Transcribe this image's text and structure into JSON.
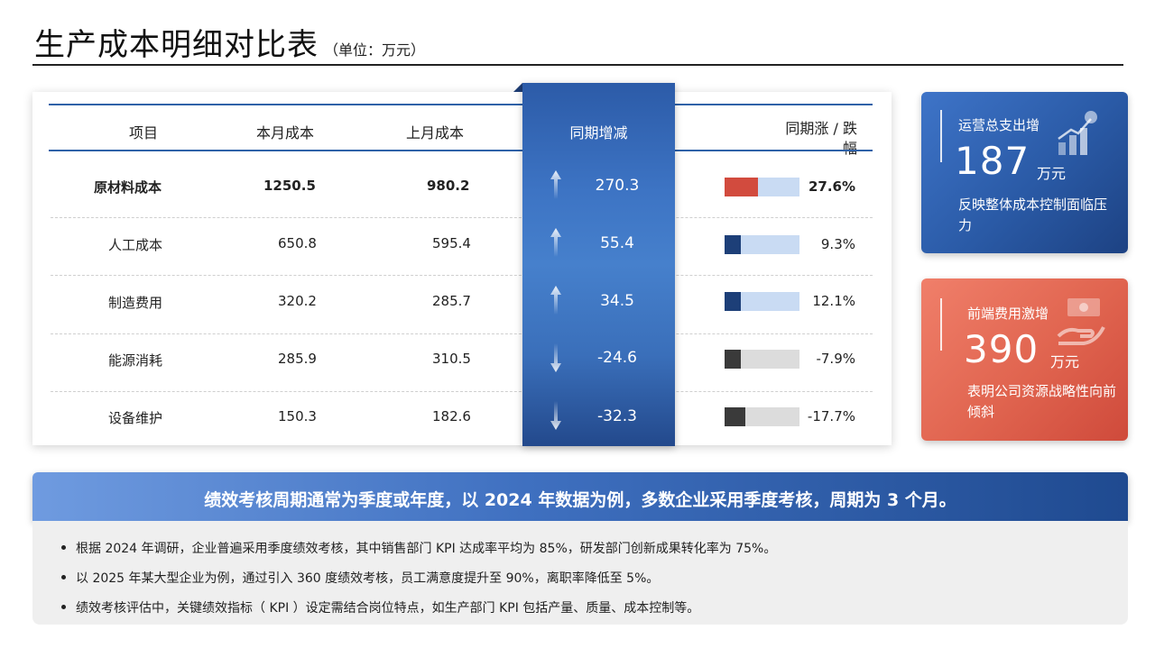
{
  "header": {
    "title": "生产成本明细对比表",
    "unit": "（单位：万元）"
  },
  "table": {
    "headers": {
      "item": "项目",
      "current": "本月成本",
      "previous": "上月成本",
      "change": "同期增减",
      "rate": "同期涨 / 跌幅"
    },
    "rows": [
      {
        "item": "原材料成本",
        "current": "1250.5",
        "previous": "980.2",
        "change": "270.3",
        "direction": "up",
        "rate": "27.6%",
        "rate_value": 27.6,
        "bar_color": "#d24b3e",
        "bar_track": "#c9dbf3",
        "bold": true
      },
      {
        "item": "人工成本",
        "current": "650.8",
        "previous": "595.4",
        "change": "55.4",
        "direction": "up",
        "rate": "9.3%",
        "rate_value": 9.3,
        "bar_color": "#1d3f78",
        "bar_track": "#c9dbf3",
        "bold": false
      },
      {
        "item": "制造费用",
        "current": "320.2",
        "previous": "285.7",
        "change": "34.5",
        "direction": "up",
        "rate": "12.1%",
        "rate_value": 12.1,
        "bar_color": "#1d3f78",
        "bar_track": "#c9dbf3",
        "bold": false
      },
      {
        "item": "能源消耗",
        "current": "285.9",
        "previous": "310.5",
        "change": "-24.6",
        "direction": "down",
        "rate": "-7.9%",
        "rate_value": -7.9,
        "bar_color": "#3a3a3a",
        "bar_track": "#dcdcdc",
        "bold": false
      },
      {
        "item": "设备维护",
        "current": "150.3",
        "previous": "182.6",
        "change": "-32.3",
        "direction": "down",
        "rate": "-17.7%",
        "rate_value": -17.7,
        "bar_color": "#3a3a3a",
        "bar_track": "#dcdcdc",
        "bold": false
      }
    ]
  },
  "kpi_cards": [
    {
      "label": "运营总支出增",
      "value": "187",
      "unit": "万元",
      "desc": "反映整体成本控制面临压力",
      "icon": "growth-chart-icon",
      "color": "#2a5aa6"
    },
    {
      "label": "前端费用激增",
      "value": "390",
      "unit": "万元",
      "desc": "表明公司资源战略性向前倾斜",
      "icon": "money-hand-icon",
      "color": "#e0644f"
    }
  ],
  "banner": {
    "text": "绩效考核周期通常为季度或年度，以 2024 年数据为例，多数企业采用季度考核，周期为 3 个月。"
  },
  "notes": [
    "根据 2024 年调研，企业普遍采用季度绩效考核，其中销售部门 KPI 达成率平均为 85%，研发部门创新成果转化率为 75%。",
    "以 2025 年某大型企业为例，通过引入 360 度绩效考核，员工满意度提升至 90%，离职率降低至 5%。",
    "绩效考核评估中，关键绩效指标（ KPI ）设定需结合岗位特点，如生产部门 KPI 包括产量、质量、成本控制等。"
  ],
  "colors": {
    "accent_blue": "#2f62a8",
    "accent_red": "#d24b3e"
  }
}
